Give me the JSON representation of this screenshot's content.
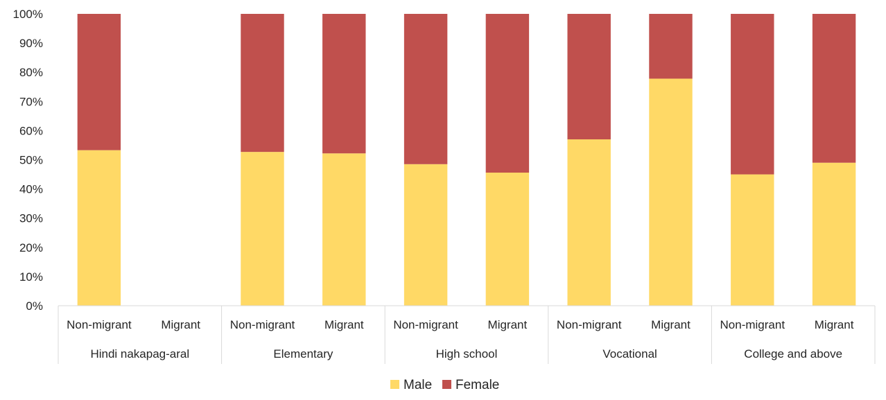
{
  "chart_data": {
    "type": "bar",
    "stacked": true,
    "percent_stacked": true,
    "groups": [
      {
        "label": "Hindi nakapag-aral",
        "categories": [
          "Non-migrant",
          "Migrant"
        ]
      },
      {
        "label": "Elementary",
        "categories": [
          "Non-migrant",
          "Migrant"
        ]
      },
      {
        "label": "High school",
        "categories": [
          "Non-migrant",
          "Migrant"
        ]
      },
      {
        "label": "Vocational",
        "categories": [
          "Non-migrant",
          "Migrant"
        ]
      },
      {
        "label": "College and above",
        "categories": [
          "Non-migrant",
          "Migrant"
        ]
      }
    ],
    "series": [
      {
        "name": "Male",
        "color": "#FFD966",
        "values": [
          53.3,
          null,
          52.7,
          52.2,
          48.5,
          45.6,
          57.0,
          77.8,
          45.0,
          49.0
        ]
      },
      {
        "name": "Female",
        "color": "#C0504D",
        "values": [
          46.7,
          null,
          47.3,
          47.8,
          51.5,
          54.4,
          43.0,
          22.2,
          55.0,
          51.0
        ]
      }
    ],
    "y_ticks": [
      "0%",
      "10%",
      "20%",
      "30%",
      "40%",
      "50%",
      "60%",
      "70%",
      "80%",
      "90%",
      "100%"
    ],
    "ylim": [
      0,
      100
    ],
    "grid": false,
    "legend_position": "bottom"
  }
}
